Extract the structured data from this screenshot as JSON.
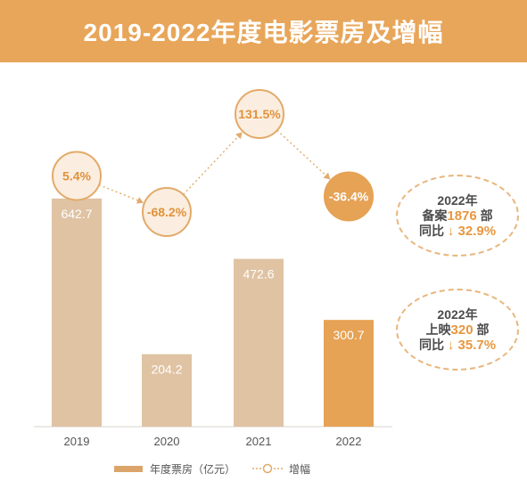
{
  "header": {
    "title": "2019-2022年度电影票房及增幅"
  },
  "chart_data": {
    "type": "bar",
    "categories": [
      "2019",
      "2020",
      "2021",
      "2022"
    ],
    "series": [
      {
        "name": "年度票房（亿元）",
        "values": [
          642.7,
          204.2,
          472.6,
          300.7
        ],
        "labels": [
          "642.7",
          "204.2",
          "472.6",
          "300.7"
        ]
      }
    ],
    "growth": {
      "name": "增幅",
      "values": [
        5.4,
        -68.2,
        131.5,
        -36.4
      ],
      "labels": [
        "5.4%",
        "-68.2%",
        "131.5%",
        "-36.4%"
      ]
    },
    "ylim": [
      0,
      700
    ],
    "colors": {
      "bar": "#dfc3a3",
      "bar_highlight": "#e6a255",
      "circle_fill": "#fbeee0",
      "circle_stroke": "#e3aa6a",
      "highlight_circle": "#e6a255",
      "dotted_line": "#e3aa6a"
    },
    "highlight_index": 3
  },
  "notes": [
    {
      "year": "2022年",
      "prefix": "备案",
      "number": "1876",
      "unit": " 部",
      "change_label": "同比",
      "change": "↓ 32.9%"
    },
    {
      "year": "2022年",
      "prefix": "上映",
      "number": "320",
      "unit": " 部",
      "change_label": "同比",
      "change": "↓ 35.7%"
    }
  ],
  "legend": {
    "bar_label": "年度票房（亿元）",
    "line_label": "增幅"
  }
}
